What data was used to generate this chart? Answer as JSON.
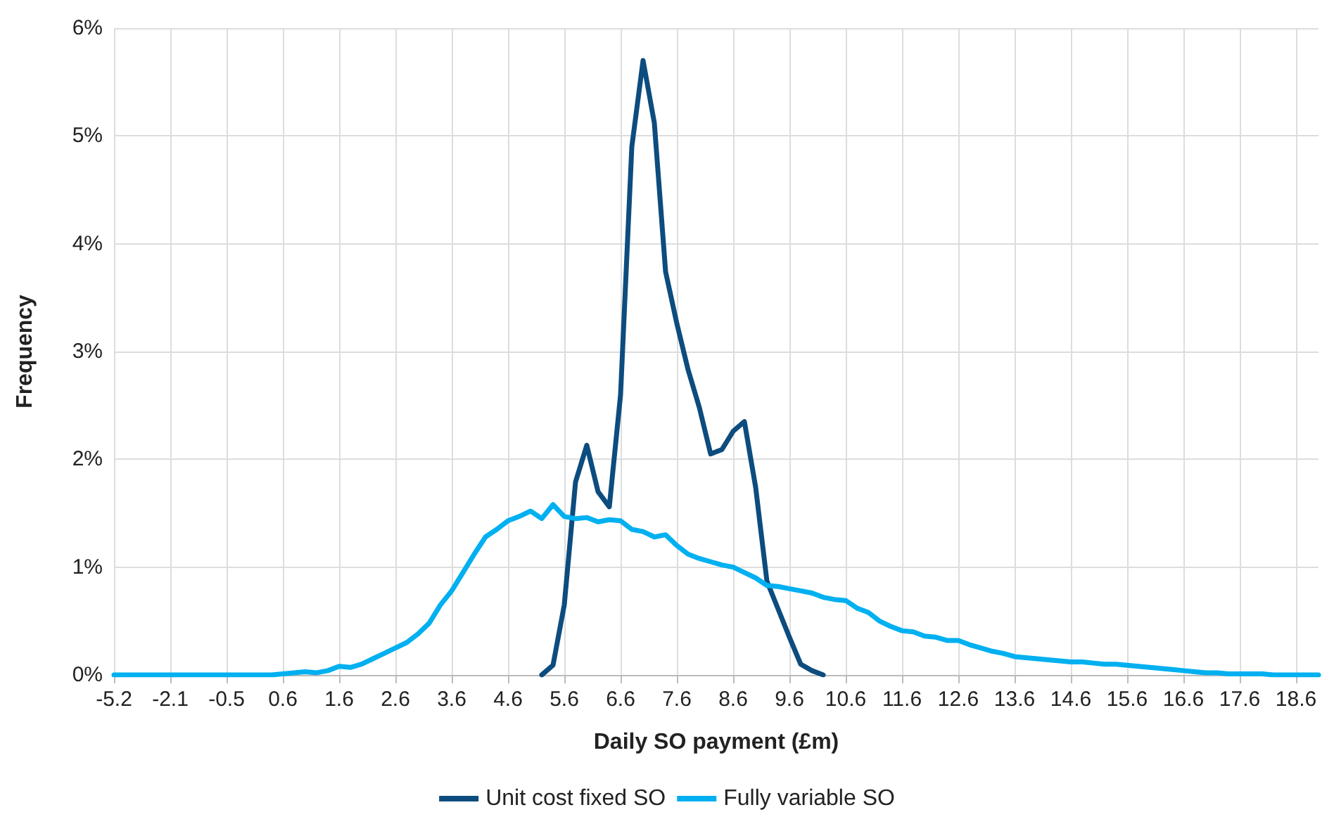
{
  "chart_data": {
    "type": "line",
    "xlabel": "Daily SO payment (£m)",
    "ylabel": "Frequency",
    "categories": [
      "-5.2",
      null,
      null,
      null,
      null,
      "-2.1",
      null,
      null,
      null,
      null,
      "-0.5",
      null,
      null,
      null,
      null,
      "0.6",
      null,
      null,
      null,
      null,
      "1.6",
      null,
      null,
      null,
      null,
      "2.6",
      null,
      null,
      null,
      null,
      "3.6",
      null,
      null,
      null,
      null,
      "4.6",
      null,
      null,
      null,
      null,
      "5.6",
      null,
      null,
      null,
      null,
      "6.6",
      null,
      null,
      null,
      null,
      "7.6",
      null,
      null,
      null,
      null,
      "8.6",
      null,
      null,
      null,
      null,
      "9.6",
      null,
      null,
      null,
      null,
      "10.6",
      null,
      null,
      null,
      null,
      "11.6",
      null,
      null,
      null,
      null,
      "12.6",
      null,
      null,
      null,
      null,
      "13.6",
      null,
      null,
      null,
      null,
      "14.6",
      null,
      null,
      null,
      null,
      "15.6",
      null,
      null,
      null,
      null,
      "16.6",
      null,
      null,
      null,
      null,
      "17.6",
      null,
      null,
      null,
      null,
      "18.6",
      null,
      null
    ],
    "series": [
      {
        "name": "Unit cost fixed SO",
        "color": "#0d4c7e",
        "values": [
          null,
          null,
          null,
          null,
          null,
          null,
          null,
          null,
          null,
          null,
          null,
          null,
          null,
          null,
          null,
          null,
          null,
          null,
          null,
          null,
          null,
          null,
          null,
          null,
          null,
          null,
          null,
          null,
          null,
          null,
          null,
          null,
          null,
          null,
          null,
          null,
          null,
          null,
          0,
          0.09,
          0.65,
          1.79,
          2.13,
          1.7,
          1.56,
          2.6,
          4.9,
          5.7,
          5.12,
          3.74,
          3.26,
          2.83,
          2.48,
          2.05,
          2.09,
          2.26,
          2.35,
          1.74,
          0.87,
          0.61,
          0.35,
          0.1,
          0.04,
          0,
          null,
          null,
          null,
          null,
          null,
          null,
          null,
          null,
          null,
          null,
          null,
          null,
          null,
          null,
          null,
          null,
          null,
          null,
          null,
          null,
          null,
          null,
          null,
          null,
          null,
          null,
          null,
          null,
          null,
          null,
          null,
          null,
          null,
          null,
          null,
          null,
          null,
          null,
          null,
          null,
          null,
          null,
          null,
          null
        ]
      },
      {
        "name": "Fully variable SO",
        "color": "#00b0f0",
        "values": [
          0,
          0,
          0,
          0,
          0,
          0,
          0,
          0,
          0,
          0,
          0,
          0,
          0,
          0,
          0,
          0.01,
          0.02,
          0.03,
          0.02,
          0.04,
          0.08,
          0.07,
          0.1,
          0.15,
          0.2,
          0.25,
          0.3,
          0.38,
          0.48,
          0.65,
          0.78,
          0.95,
          1.12,
          1.28,
          1.35,
          1.43,
          1.47,
          1.52,
          1.45,
          1.58,
          1.47,
          1.45,
          1.46,
          1.42,
          1.44,
          1.43,
          1.35,
          1.33,
          1.28,
          1.3,
          1.2,
          1.12,
          1.08,
          1.05,
          1.02,
          1.0,
          0.95,
          0.9,
          0.83,
          0.82,
          0.8,
          0.78,
          0.76,
          0.72,
          0.7,
          0.69,
          0.62,
          0.58,
          0.5,
          0.45,
          0.41,
          0.4,
          0.36,
          0.35,
          0.32,
          0.32,
          0.28,
          0.25,
          0.22,
          0.2,
          0.17,
          0.16,
          0.15,
          0.14,
          0.13,
          0.12,
          0.12,
          0.11,
          0.1,
          0.1,
          0.09,
          0.08,
          0.07,
          0.06,
          0.05,
          0.04,
          0.03,
          0.02,
          0.02,
          0.01,
          0.01,
          0.01,
          0.01,
          0,
          0,
          0,
          0,
          0
        ]
      }
    ],
    "ylim": [
      0,
      6
    ],
    "yticks": [
      {
        "value": 0,
        "label": "0%"
      },
      {
        "value": 1,
        "label": "1%"
      },
      {
        "value": 2,
        "label": "2%"
      },
      {
        "value": 3,
        "label": "3%"
      },
      {
        "value": 4,
        "label": "4%"
      },
      {
        "value": 5,
        "label": "5%"
      },
      {
        "value": 6,
        "label": "6%"
      }
    ],
    "grid": true,
    "legend": "bottom",
    "marker": "none",
    "line_style": "solid"
  }
}
